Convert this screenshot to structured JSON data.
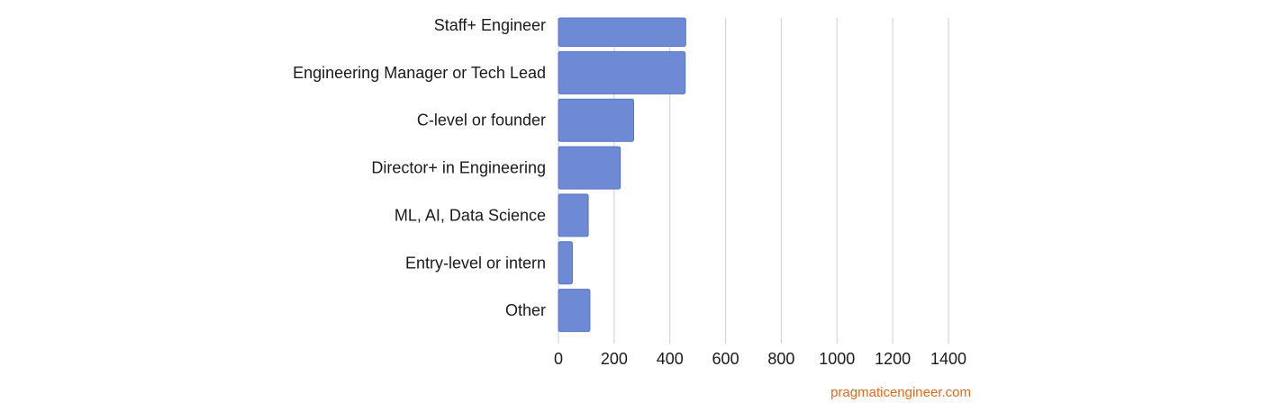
{
  "chart_data": {
    "type": "bar",
    "orientation": "horizontal",
    "categories": [
      "Staff+ Engineer",
      "Engineering Manager or Tech Lead",
      "C-level or founder",
      "Director+ in Engineering",
      "ML, AI, Data Science",
      "Entry-level or intern",
      "Other"
    ],
    "values": [
      457,
      455,
      270,
      222,
      107,
      50,
      113
    ],
    "xlim": [
      0,
      1400
    ],
    "x_ticks": [
      "0",
      "200",
      "400",
      "600",
      "800",
      "1000",
      "1200",
      "1400"
    ],
    "grid": "vertical",
    "bar_color": "#6f8ad4",
    "title": "",
    "xlabel": "",
    "ylabel": ""
  },
  "source_note": "pragmaticengineer.com",
  "source_color": "#e06a1b"
}
